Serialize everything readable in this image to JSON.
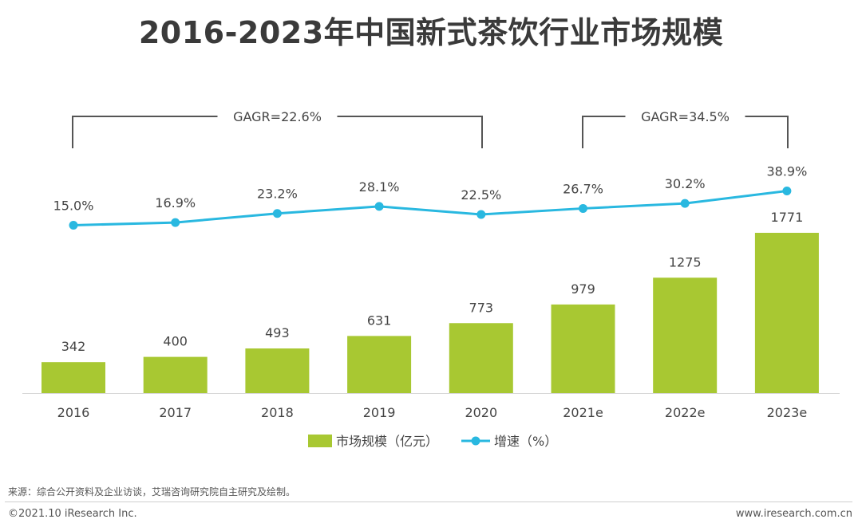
{
  "chart_data": {
    "type": "bar",
    "title": "2016-2023年中国新式茶饮行业市场规模",
    "categories": [
      "2016",
      "2017",
      "2018",
      "2019",
      "2020",
      "2021e",
      "2022e",
      "2023e"
    ],
    "series": [
      {
        "name": "市场规模（亿元）",
        "kind": "bar",
        "values": [
          342,
          400,
          493,
          631,
          773,
          979,
          1275,
          1771
        ],
        "labels": [
          "342",
          "400",
          "493",
          "631",
          "773",
          "979",
          "1275",
          "1771"
        ]
      },
      {
        "name": "增速（%）",
        "kind": "line",
        "values": [
          15.0,
          16.9,
          23.2,
          28.1,
          22.5,
          26.7,
          30.2,
          38.9
        ],
        "labels": [
          "15.0%",
          "16.9%",
          "23.2%",
          "28.1%",
          "22.5%",
          "26.7%",
          "30.2%",
          "38.9%"
        ]
      }
    ],
    "annotations": [
      {
        "text": "GAGR=22.6%",
        "from": "2016",
        "to": "2020"
      },
      {
        "text": "GAGR=34.5%",
        "from": "2021e",
        "to": "2023e"
      }
    ],
    "legend": {
      "position": "bottom",
      "bar_label": "市场规模（亿元）",
      "line_label": "增速（%）"
    },
    "colors": {
      "bar": "#a8c832",
      "line": "#29b8e0",
      "bracket": "#555555",
      "text": "#444444"
    }
  },
  "source": "来源：综合公开资料及企业访谈，艾瑞咨询研究院自主研究及绘制。",
  "copyright": "©2021.10 iResearch Inc.",
  "website": "www.iresearch.com.cn"
}
